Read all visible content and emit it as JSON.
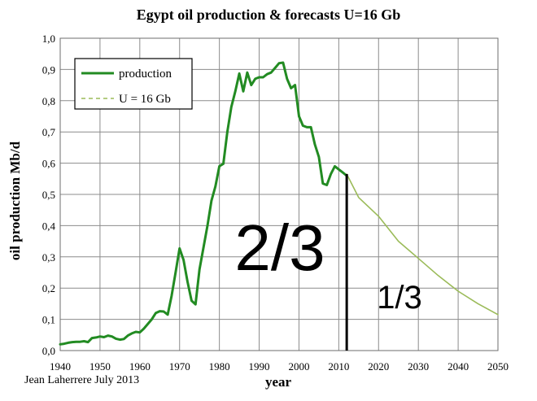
{
  "chart_data": {
    "type": "line",
    "title": "Egypt oil production  & forecasts U=16 Gb",
    "xlabel": "year",
    "ylabel": "oil production Mb/d",
    "xlim": [
      1940,
      2050
    ],
    "ylim": [
      0,
      1.0
    ],
    "x_ticks": [
      "1940",
      "1950",
      "1960",
      "1970",
      "1980",
      "1990",
      "2000",
      "2010",
      "2020",
      "2030",
      "2040",
      "2050"
    ],
    "y_ticks": [
      "0,0",
      "0,1",
      "0,2",
      "0,3",
      "0,4",
      "0,5",
      "0,6",
      "0,7",
      "0,8",
      "0,9",
      "1,0"
    ],
    "grid": true,
    "legend_position": "top-left",
    "series": [
      {
        "name": "production",
        "color": "#228B22",
        "style": "solid",
        "x": [
          1940,
          1941,
          1942,
          1943,
          1944,
          1945,
          1946,
          1947,
          1948,
          1949,
          1950,
          1951,
          1952,
          1953,
          1954,
          1955,
          1956,
          1957,
          1958,
          1959,
          1960,
          1961,
          1962,
          1963,
          1964,
          1965,
          1966,
          1967,
          1968,
          1969,
          1970,
          1971,
          1972,
          1973,
          1974,
          1975,
          1976,
          1977,
          1978,
          1979,
          1980,
          1981,
          1982,
          1983,
          1984,
          1985,
          1986,
          1987,
          1988,
          1989,
          1990,
          1991,
          1992,
          1993,
          1994,
          1995,
          1996,
          1997,
          1998,
          1999,
          2000,
          2001,
          2002,
          2003,
          2004,
          2005,
          2006,
          2007,
          2008,
          2009,
          2010,
          2011,
          2012
        ],
        "values": [
          0.02,
          0.022,
          0.025,
          0.027,
          0.028,
          0.028,
          0.03,
          0.027,
          0.04,
          0.042,
          0.045,
          0.043,
          0.048,
          0.045,
          0.038,
          0.035,
          0.037,
          0.048,
          0.055,
          0.06,
          0.058,
          0.07,
          0.085,
          0.1,
          0.12,
          0.126,
          0.125,
          0.115,
          0.175,
          0.25,
          0.327,
          0.29,
          0.22,
          0.16,
          0.148,
          0.26,
          0.33,
          0.4,
          0.48,
          0.525,
          0.59,
          0.598,
          0.7,
          0.78,
          0.83,
          0.887,
          0.83,
          0.89,
          0.85,
          0.87,
          0.875,
          0.875,
          0.885,
          0.89,
          0.905,
          0.92,
          0.922,
          0.87,
          0.84,
          0.85,
          0.75,
          0.72,
          0.715,
          0.715,
          0.66,
          0.62,
          0.535,
          0.53,
          0.565,
          0.59,
          0.58,
          0.57,
          0.56
        ]
      },
      {
        "name": "U = 16 Gb",
        "color": "#9BBB59",
        "style": "solid-thin",
        "x": [
          2012,
          2015,
          2020,
          2025,
          2030,
          2035,
          2040,
          2045,
          2050
        ],
        "values": [
          0.565,
          0.49,
          0.43,
          0.35,
          0.295,
          0.24,
          0.19,
          0.15,
          0.115
        ]
      }
    ],
    "annotations": [
      {
        "text": "2/3"
      },
      {
        "text": "1/3"
      },
      {
        "text": "Jean Laherrere July 2013"
      }
    ],
    "marker_year": 2012
  }
}
